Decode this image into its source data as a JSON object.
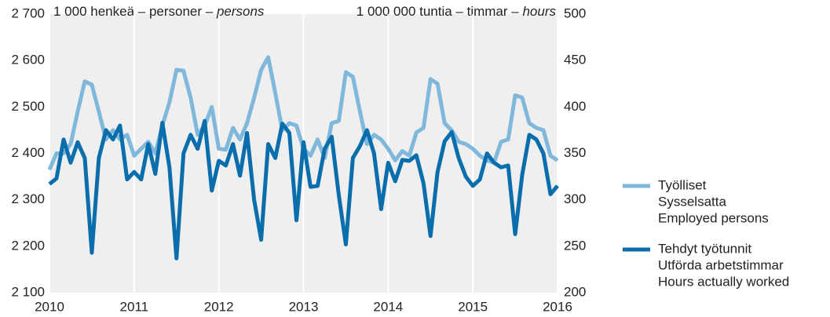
{
  "chart_data": {
    "type": "line",
    "ylabel": [
      "1 000 henkeä – personer –",
      "persons"
    ],
    "y2label": [
      "1 000 000 tuntia – timmar –",
      "hours"
    ],
    "x": [
      2010,
      2010.083,
      2010.167,
      2010.25,
      2010.333,
      2010.417,
      2010.5,
      2010.583,
      2010.667,
      2010.75,
      2010.833,
      2010.917,
      2011,
      2011.083,
      2011.167,
      2011.25,
      2011.333,
      2011.417,
      2011.5,
      2011.583,
      2011.667,
      2011.75,
      2011.833,
      2011.917,
      2012,
      2012.083,
      2012.167,
      2012.25,
      2012.333,
      2012.417,
      2012.5,
      2012.583,
      2012.667,
      2012.75,
      2012.833,
      2012.917,
      2013,
      2013.083,
      2013.167,
      2013.25,
      2013.333,
      2013.417,
      2013.5,
      2013.583,
      2013.667,
      2013.75,
      2013.833,
      2013.917,
      2014,
      2014.083,
      2014.167,
      2014.25,
      2014.333,
      2014.417,
      2014.5,
      2014.583,
      2014.667,
      2014.75,
      2014.833,
      2014.917,
      2015,
      2015.083,
      2015.167,
      2015.25,
      2015.333,
      2015.417,
      2015.5,
      2015.583,
      2015.667,
      2015.75,
      2015.833,
      2015.917,
      2016
    ],
    "series": [
      {
        "name": [
          "Työlliset",
          "Sysselsatta",
          "Employed persons"
        ],
        "color": "#80b8dc",
        "axis": "y",
        "values": [
          2365,
          2400,
          2400,
          2420,
          2490,
          2555,
          2548,
          2490,
          2430,
          2450,
          2430,
          2440,
          2395,
          2410,
          2425,
          2400,
          2460,
          2510,
          2580,
          2578,
          2520,
          2440,
          2460,
          2500,
          2410,
          2408,
          2455,
          2430,
          2465,
          2520,
          2580,
          2607,
          2530,
          2450,
          2465,
          2460,
          2410,
          2395,
          2430,
          2390,
          2465,
          2470,
          2575,
          2565,
          2490,
          2420,
          2440,
          2430,
          2410,
          2385,
          2405,
          2395,
          2445,
          2455,
          2560,
          2550,
          2465,
          2450,
          2425,
          2420,
          2410,
          2395,
          2385,
          2380,
          2425,
          2430,
          2525,
          2520,
          2465,
          2455,
          2450,
          2395,
          2385
        ]
      },
      {
        "name": [
          "Tehdyt työtunnit",
          "Utförda arbetstimmar",
          "Hours actually worked"
        ],
        "color": "#0a6ead",
        "axis": "y2",
        "values": [
          317,
          323,
          365,
          340,
          362,
          345,
          243,
          345,
          375,
          365,
          380,
          322,
          330,
          322,
          360,
          328,
          383,
          335,
          237,
          350,
          370,
          355,
          385,
          310,
          342,
          337,
          360,
          326,
          372,
          300,
          257,
          360,
          345,
          382,
          372,
          278,
          362,
          314,
          315,
          355,
          368,
          305,
          252,
          345,
          358,
          375,
          350,
          290,
          340,
          320,
          343,
          342,
          348,
          318,
          261,
          330,
          363,
          373,
          345,
          325,
          315,
          322,
          350,
          340,
          335,
          337,
          263,
          327,
          370,
          365,
          350,
          306,
          315
        ]
      }
    ],
    "xlim": [
      2010,
      2016
    ],
    "xticks": [
      2010,
      2011,
      2012,
      2013,
      2014,
      2015,
      2016
    ],
    "ylim": [
      2100,
      2700
    ],
    "yticks": [
      {
        "value": 2100,
        "label": "2 100"
      },
      {
        "value": 2200,
        "label": "2 200"
      },
      {
        "value": 2300,
        "label": "2 300"
      },
      {
        "value": 2400,
        "label": "2 400"
      },
      {
        "value": 2500,
        "label": "2 500"
      },
      {
        "value": 2600,
        "label": "2 600"
      },
      {
        "value": 2700,
        "label": "2 700"
      }
    ],
    "y2lim": [
      200,
      500
    ],
    "y2ticks": [
      200,
      250,
      300,
      350,
      400,
      450,
      500
    ],
    "grid": true
  }
}
